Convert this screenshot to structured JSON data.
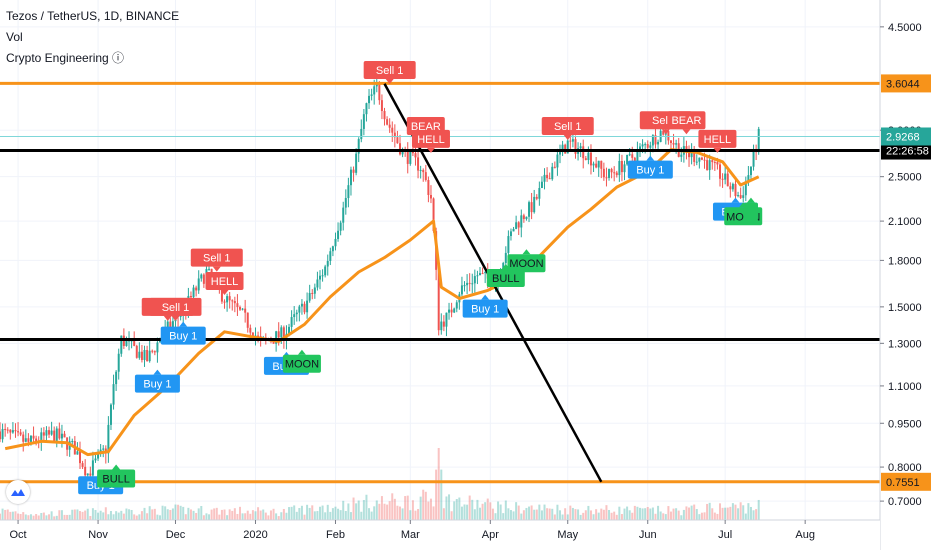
{
  "legend": {
    "symbol_line": "Tezos / TetherUS, 1D, BINANCE",
    "vol_label": "Vol",
    "indicator_label": "Crypto Engineering ⓘ"
  },
  "colors": {
    "up": "#26a69a",
    "down": "#ef5350",
    "ma": "#f7931a",
    "sell": "#f05350",
    "buy": "#2196f3",
    "bull": "#22c55e",
    "level_orange": "#f7931a",
    "level_black": "#000000",
    "price_line": "#7fd7d9"
  },
  "chart_data": {
    "type": "candlestick",
    "y_scale": "log",
    "ylim": [
      0.65,
      5.0
    ],
    "y_ticks": [
      {
        "value": 4.5,
        "label": "4.5000"
      },
      {
        "value": 3.0,
        "label": "3.0000"
      },
      {
        "value": 2.5,
        "label": "2.5000"
      },
      {
        "value": 2.1,
        "label": "2.1000"
      },
      {
        "value": 1.8,
        "label": "1.8000"
      },
      {
        "value": 1.5,
        "label": "1.5000"
      },
      {
        "value": 1.3,
        "label": "1.3000"
      },
      {
        "value": 1.1,
        "label": "1.1000"
      },
      {
        "value": 0.95,
        "label": "0.9500"
      },
      {
        "value": 0.8,
        "label": "0.8000"
      },
      {
        "value": 0.7,
        "label": "0.7000"
      }
    ],
    "x_ticks": [
      {
        "date": "2019-10-01",
        "label": "Oct"
      },
      {
        "date": "2019-11-01",
        "label": "Nov"
      },
      {
        "date": "2019-12-01",
        "label": "Dec"
      },
      {
        "date": "2020-01-01",
        "label": "2020"
      },
      {
        "date": "2020-02-01",
        "label": "Feb"
      },
      {
        "date": "2020-03-01",
        "label": "Mar"
      },
      {
        "date": "2020-04-01",
        "label": "Apr"
      },
      {
        "date": "2020-05-01",
        "label": "May"
      },
      {
        "date": "2020-06-01",
        "label": "Jun"
      },
      {
        "date": "2020-07-01",
        "label": "Jul"
      },
      {
        "date": "2020-08-01",
        "label": "Aug"
      }
    ],
    "date_range": [
      "2019-09-24",
      "2020-08-30"
    ],
    "price_path": [
      {
        "date": "2019-09-24",
        "value": 0.92
      },
      {
        "date": "2019-10-05",
        "value": 0.88
      },
      {
        "date": "2019-10-15",
        "value": 0.91
      },
      {
        "date": "2019-10-23",
        "value": 0.86
      },
      {
        "date": "2019-10-28",
        "value": 0.78
      },
      {
        "date": "2019-11-04",
        "value": 0.86
      },
      {
        "date": "2019-11-10",
        "value": 1.32
      },
      {
        "date": "2019-11-20",
        "value": 1.22
      },
      {
        "date": "2019-11-27",
        "value": 1.36
      },
      {
        "date": "2019-12-05",
        "value": 1.5
      },
      {
        "date": "2019-12-13",
        "value": 1.72
      },
      {
        "date": "2019-12-20",
        "value": 1.55
      },
      {
        "date": "2019-12-27",
        "value": 1.45
      },
      {
        "date": "2020-01-03",
        "value": 1.3
      },
      {
        "date": "2020-01-12",
        "value": 1.35
      },
      {
        "date": "2020-01-22",
        "value": 1.55
      },
      {
        "date": "2020-01-28",
        "value": 1.75
      },
      {
        "date": "2020-02-04",
        "value": 2.2
      },
      {
        "date": "2020-02-09",
        "value": 2.7
      },
      {
        "date": "2020-02-13",
        "value": 3.3
      },
      {
        "date": "2020-02-17",
        "value": 3.55
      },
      {
        "date": "2020-02-21",
        "value": 3.1
      },
      {
        "date": "2020-02-27",
        "value": 2.75
      },
      {
        "date": "2020-03-05",
        "value": 2.6
      },
      {
        "date": "2020-03-09",
        "value": 2.3
      },
      {
        "date": "2020-03-12",
        "value": 1.4
      },
      {
        "date": "2020-03-16",
        "value": 1.45
      },
      {
        "date": "2020-03-20",
        "value": 1.6
      },
      {
        "date": "2020-03-27",
        "value": 1.7
      },
      {
        "date": "2020-04-03",
        "value": 1.65
      },
      {
        "date": "2020-04-10",
        "value": 2.05
      },
      {
        "date": "2020-04-18",
        "value": 2.25
      },
      {
        "date": "2020-04-25",
        "value": 2.6
      },
      {
        "date": "2020-05-01",
        "value": 2.85
      },
      {
        "date": "2020-05-08",
        "value": 2.75
      },
      {
        "date": "2020-05-16",
        "value": 2.5
      },
      {
        "date": "2020-05-24",
        "value": 2.65
      },
      {
        "date": "2020-06-01",
        "value": 2.85
      },
      {
        "date": "2020-06-07",
        "value": 3.0
      },
      {
        "date": "2020-06-14",
        "value": 2.75
      },
      {
        "date": "2020-06-21",
        "value": 2.7
      },
      {
        "date": "2020-06-28",
        "value": 2.55
      },
      {
        "date": "2020-07-03",
        "value": 2.4
      },
      {
        "date": "2020-07-07",
        "value": 2.3
      },
      {
        "date": "2020-07-11",
        "value": 2.6
      },
      {
        "date": "2020-07-14",
        "value": 2.93
      }
    ],
    "ma_path": [
      {
        "date": "2019-09-26",
        "value": 0.86
      },
      {
        "date": "2019-10-10",
        "value": 0.885
      },
      {
        "date": "2019-10-20",
        "value": 0.88
      },
      {
        "date": "2019-10-28",
        "value": 0.84
      },
      {
        "date": "2019-11-05",
        "value": 0.85
      },
      {
        "date": "2019-11-15",
        "value": 0.98
      },
      {
        "date": "2019-11-28",
        "value": 1.1
      },
      {
        "date": "2019-12-10",
        "value": 1.25
      },
      {
        "date": "2019-12-20",
        "value": 1.36
      },
      {
        "date": "2020-01-01",
        "value": 1.33
      },
      {
        "date": "2020-01-10",
        "value": 1.31
      },
      {
        "date": "2020-01-20",
        "value": 1.4
      },
      {
        "date": "2020-01-30",
        "value": 1.56
      },
      {
        "date": "2020-02-10",
        "value": 1.72
      },
      {
        "date": "2020-02-20",
        "value": 1.82
      },
      {
        "date": "2020-03-01",
        "value": 1.95
      },
      {
        "date": "2020-03-10",
        "value": 2.1
      },
      {
        "date": "2020-03-13",
        "value": 1.62
      },
      {
        "date": "2020-03-20",
        "value": 1.55
      },
      {
        "date": "2020-03-31",
        "value": 1.6
      },
      {
        "date": "2020-04-10",
        "value": 1.68
      },
      {
        "date": "2020-04-20",
        "value": 1.83
      },
      {
        "date": "2020-05-01",
        "value": 2.05
      },
      {
        "date": "2020-05-10",
        "value": 2.2
      },
      {
        "date": "2020-05-20",
        "value": 2.4
      },
      {
        "date": "2020-06-01",
        "value": 2.55
      },
      {
        "date": "2020-06-10",
        "value": 2.78
      },
      {
        "date": "2020-06-20",
        "value": 2.75
      },
      {
        "date": "2020-06-30",
        "value": 2.65
      },
      {
        "date": "2020-07-07",
        "value": 2.42
      },
      {
        "date": "2020-07-14",
        "value": 2.5
      }
    ],
    "volume_path": [
      {
        "date": "2019-09-24",
        "value": 0.9
      },
      {
        "date": "2019-10-10",
        "value": 0.6
      },
      {
        "date": "2019-11-01",
        "value": 0.8
      },
      {
        "date": "2019-12-01",
        "value": 1.0
      },
      {
        "date": "2020-01-10",
        "value": 0.8
      },
      {
        "date": "2020-02-10",
        "value": 1.6
      },
      {
        "date": "2020-03-10",
        "value": 2.0
      },
      {
        "date": "2020-04-10",
        "value": 1.2
      },
      {
        "date": "2020-05-10",
        "value": 1.0
      },
      {
        "date": "2020-06-10",
        "value": 0.9
      },
      {
        "date": "2020-07-14",
        "value": 1.4
      }
    ],
    "volume_spike": {
      "date": "2020-03-12",
      "value": 6.0
    },
    "horizontal_levels": [
      {
        "value": 3.6044,
        "label": "3.6044",
        "color": "#f7931a",
        "label_bg": "#f7931a",
        "label_color": "#131722",
        "width": 3
      },
      {
        "value": 2.77,
        "label": "22:26:58",
        "color": "#000000",
        "label_bg": "#000000",
        "label_color": "#ffffff",
        "width": 3
      },
      {
        "value": 1.32,
        "label": "",
        "color": "#000000",
        "label_bg": "",
        "label_color": "",
        "width": 3
      },
      {
        "value": 0.7551,
        "label": "0.7551",
        "color": "#f7931a",
        "label_bg": "#f7931a",
        "label_color": "#131722",
        "width": 3
      }
    ],
    "last_price": {
      "value": 2.9268,
      "label": "2.9268"
    },
    "trend_line": {
      "start_date": "2020-02-20",
      "start_value": 3.6,
      "end_date": "2020-05-14",
      "end_value": 0.7551
    },
    "signals": [
      {
        "date": "2019-11-28",
        "value": 1.5,
        "text": "Sell 1",
        "kind": "sell"
      },
      {
        "date": "2019-12-01",
        "value": 1.5,
        "text": "Sell 1",
        "kind": "sell"
      },
      {
        "date": "2019-12-17",
        "value": 1.82,
        "text": "Sell 1",
        "kind": "sell"
      },
      {
        "date": "2019-12-20",
        "value": 1.66,
        "text": "HELL",
        "kind": "sell"
      },
      {
        "date": "2020-02-22",
        "value": 3.8,
        "text": "Sell 1",
        "kind": "sell"
      },
      {
        "date": "2020-03-07",
        "value": 3.05,
        "text": "BEAR",
        "kind": "sell"
      },
      {
        "date": "2020-03-09",
        "value": 2.9,
        "text": "HELL",
        "kind": "sell"
      },
      {
        "date": "2020-05-01",
        "value": 3.05,
        "text": "Sell 1",
        "kind": "sell"
      },
      {
        "date": "2020-06-08",
        "value": 3.12,
        "text": "Sell 1",
        "kind": "sell"
      },
      {
        "date": "2020-06-16",
        "value": 3.12,
        "text": "BEAR",
        "kind": "sell"
      },
      {
        "date": "2020-06-28",
        "value": 2.9,
        "text": "HELL",
        "kind": "sell"
      },
      {
        "date": "2019-11-02",
        "value": 0.745,
        "text": "Buy 1",
        "kind": "buy"
      },
      {
        "date": "2019-11-24",
        "value": 1.11,
        "text": "Buy 1",
        "kind": "buy"
      },
      {
        "date": "2019-12-04",
        "value": 1.34,
        "text": "Buy 1",
        "kind": "buy"
      },
      {
        "date": "2020-01-13",
        "value": 1.19,
        "text": "Buy 1",
        "kind": "buy"
      },
      {
        "date": "2020-03-30",
        "value": 1.49,
        "text": "Buy 1",
        "kind": "buy"
      },
      {
        "date": "2020-06-02",
        "value": 2.57,
        "text": "Buy 1",
        "kind": "buy"
      },
      {
        "date": "2020-07-05",
        "value": 2.18,
        "text": "Buy 1",
        "kind": "buy"
      },
      {
        "date": "2019-11-08",
        "value": 0.765,
        "text": "BULL",
        "kind": "bull"
      },
      {
        "date": "2020-01-19",
        "value": 1.2,
        "text": "MOON",
        "kind": "bull"
      },
      {
        "date": "2020-04-07",
        "value": 1.68,
        "text": "BULL",
        "kind": "bull"
      },
      {
        "date": "2020-04-15",
        "value": 1.78,
        "text": "MOON",
        "kind": "bull"
      },
      {
        "date": "2020-07-08",
        "value": 2.14,
        "text": "MOON",
        "kind": "bull"
      },
      {
        "date": "2020-07-11",
        "value": 2.18,
        "text": "",
        "kind": "bull"
      }
    ]
  }
}
